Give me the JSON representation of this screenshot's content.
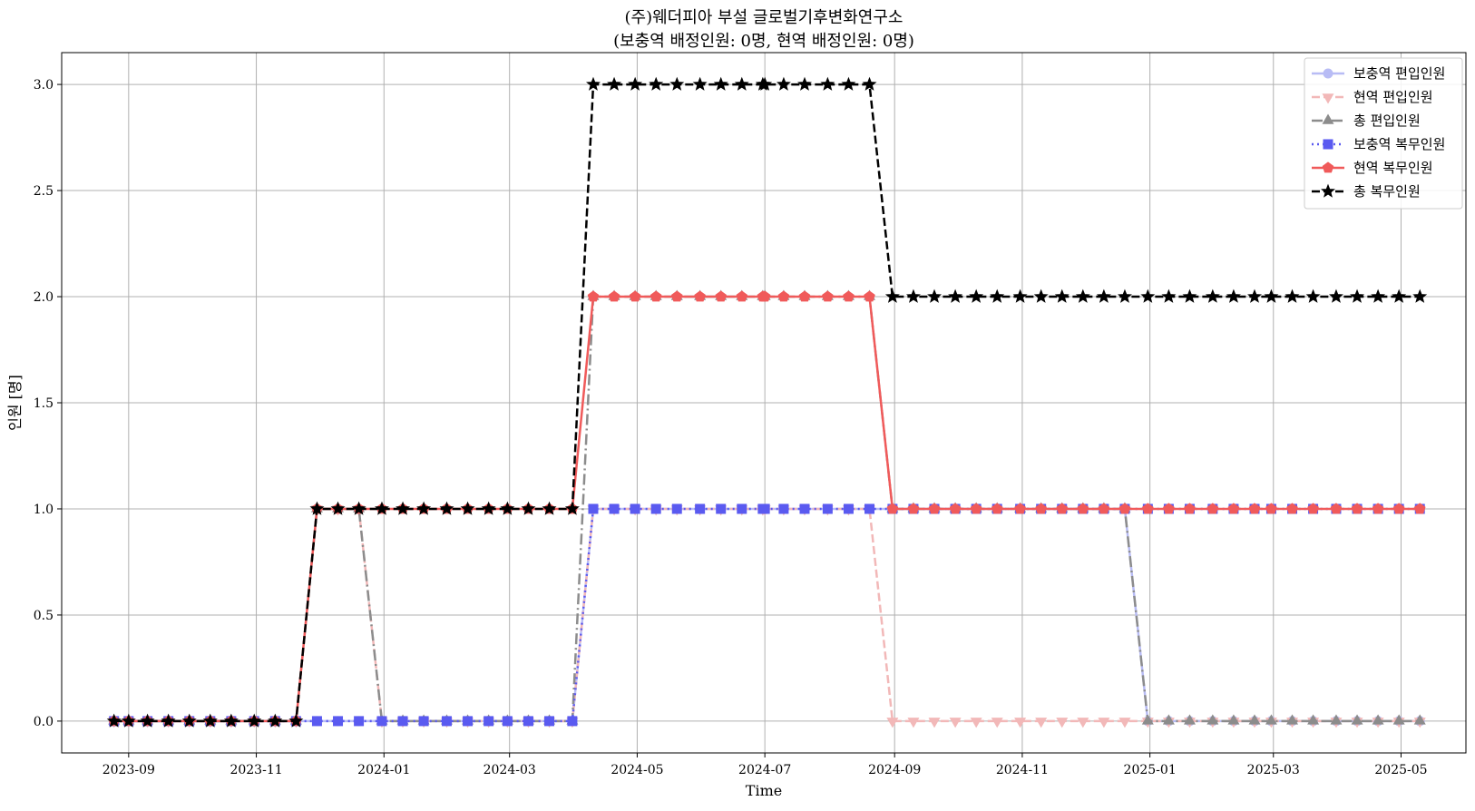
{
  "chart_data": {
    "type": "line",
    "title_line1": "(주)웨더피아 부설 글로벌기후변화연구소",
    "title_line2": "(보충역 배정인원: 0명, 현역 배정인원: 0명)",
    "xlabel": "Time",
    "ylabel": "인원 [명]",
    "ylim": [
      -0.15,
      3.15
    ],
    "xlim": [
      "2023-07-31",
      "2025-06-01"
    ],
    "grid": true,
    "legend_position": "top-right",
    "y_ticks": [
      0.0,
      0.5,
      1.0,
      1.5,
      2.0,
      2.5,
      3.0
    ],
    "y_tick_labels": [
      "0.0",
      "0.5",
      "1.0",
      "1.5",
      "2.0",
      "2.5",
      "3.0"
    ],
    "x_ticks": [
      "2023-09-01",
      "2023-11-01",
      "2024-01-01",
      "2024-03-01",
      "2024-05-01",
      "2024-07-01",
      "2024-09-01",
      "2024-11-01",
      "2025-01-01",
      "2025-03-01",
      "2025-05-01"
    ],
    "x_tick_labels": [
      "2023-09",
      "2023-11",
      "2024-01",
      "2024-03",
      "2024-05",
      "2024-07",
      "2024-09",
      "2024-11",
      "2025-01",
      "2025-03",
      "2025-05"
    ],
    "x": [
      "2023-08-25",
      "2023-09-01",
      "2023-09-10",
      "2023-09-20",
      "2023-09-30",
      "2023-10-10",
      "2023-10-20",
      "2023-10-31",
      "2023-11-10",
      "2023-11-20",
      "2023-11-30",
      "2023-12-10",
      "2023-12-20",
      "2023-12-31",
      "2024-01-10",
      "2024-01-20",
      "2024-01-31",
      "2024-02-10",
      "2024-02-20",
      "2024-02-29",
      "2024-03-10",
      "2024-03-20",
      "2024-03-31",
      "2024-04-10",
      "2024-04-20",
      "2024-04-30",
      "2024-05-10",
      "2024-05-20",
      "2024-05-31",
      "2024-06-10",
      "2024-06-20",
      "2024-06-30",
      "2024-07-01",
      "2024-07-10",
      "2024-07-20",
      "2024-07-31",
      "2024-08-10",
      "2024-08-20",
      "2024-08-31",
      "2024-09-10",
      "2024-09-20",
      "2024-09-30",
      "2024-10-10",
      "2024-10-20",
      "2024-10-31",
      "2024-11-10",
      "2024-11-20",
      "2024-11-30",
      "2024-12-10",
      "2024-12-20",
      "2024-12-31",
      "2025-01-10",
      "2025-01-20",
      "2025-01-31",
      "2025-02-10",
      "2025-02-20",
      "2025-02-28",
      "2025-03-10",
      "2025-03-20",
      "2025-03-31",
      "2025-04-10",
      "2025-04-20",
      "2025-04-30",
      "2025-05-10"
    ],
    "series": [
      {
        "name": "보충역 편입인원",
        "color": "#b8bcf5",
        "dash": "solid",
        "marker": "circle",
        "width": 2.5,
        "values": [
          0,
          0,
          0,
          0,
          0,
          0,
          0,
          0,
          0,
          0,
          0,
          0,
          0,
          0,
          0,
          0,
          0,
          0,
          0,
          0,
          0,
          0,
          0,
          1,
          1,
          1,
          1,
          1,
          1,
          1,
          1,
          1,
          1,
          1,
          1,
          1,
          1,
          1,
          1,
          1,
          1,
          1,
          1,
          1,
          1,
          1,
          1,
          1,
          1,
          1,
          0,
          0,
          0,
          0,
          0,
          0,
          0,
          0,
          0,
          0,
          0,
          0,
          0,
          0
        ]
      },
      {
        "name": "현역 편입인원",
        "color": "#f2b8b8",
        "dash": "dashed",
        "marker": "triangle-down",
        "width": 2.5,
        "values": [
          0,
          0,
          0,
          0,
          0,
          0,
          0,
          0,
          0,
          0,
          1,
          1,
          1,
          0,
          0,
          0,
          0,
          0,
          0,
          0,
          0,
          0,
          0,
          1,
          1,
          1,
          1,
          1,
          1,
          1,
          1,
          1,
          1,
          1,
          1,
          1,
          1,
          1,
          0,
          0,
          0,
          0,
          0,
          0,
          0,
          0,
          0,
          0,
          0,
          0,
          0,
          0,
          0,
          0,
          0,
          0,
          0,
          0,
          0,
          0,
          0,
          0,
          0,
          0
        ]
      },
      {
        "name": "총 편입인원",
        "color": "#8c8c8c",
        "dash": "dashdot",
        "marker": "triangle-up",
        "width": 2.5,
        "values": [
          0,
          0,
          0,
          0,
          0,
          0,
          0,
          0,
          0,
          0,
          1,
          1,
          1,
          0,
          0,
          0,
          0,
          0,
          0,
          0,
          0,
          0,
          0,
          2,
          2,
          2,
          2,
          2,
          2,
          2,
          2,
          2,
          2,
          2,
          2,
          2,
          2,
          2,
          1,
          1,
          1,
          1,
          1,
          1,
          1,
          1,
          1,
          1,
          1,
          1,
          0,
          0,
          0,
          0,
          0,
          0,
          0,
          0,
          0,
          0,
          0,
          0,
          0,
          0
        ]
      },
      {
        "name": "보충역 복무인원",
        "color": "#5a5af0",
        "dash": "dotted",
        "marker": "square",
        "width": 2.5,
        "values": [
          0,
          0,
          0,
          0,
          0,
          0,
          0,
          0,
          0,
          0,
          0,
          0,
          0,
          0,
          0,
          0,
          0,
          0,
          0,
          0,
          0,
          0,
          0,
          1,
          1,
          1,
          1,
          1,
          1,
          1,
          1,
          1,
          1,
          1,
          1,
          1,
          1,
          1,
          1,
          1,
          1,
          1,
          1,
          1,
          1,
          1,
          1,
          1,
          1,
          1,
          1,
          1,
          1,
          1,
          1,
          1,
          1,
          1,
          1,
          1,
          1,
          1,
          1,
          1
        ]
      },
      {
        "name": "현역 복무인원",
        "color": "#f05a5a",
        "dash": "solid",
        "marker": "pentagon",
        "width": 2.5,
        "values": [
          0,
          0,
          0,
          0,
          0,
          0,
          0,
          0,
          0,
          0,
          1,
          1,
          1,
          1,
          1,
          1,
          1,
          1,
          1,
          1,
          1,
          1,
          1,
          2,
          2,
          2,
          2,
          2,
          2,
          2,
          2,
          2,
          2,
          2,
          2,
          2,
          2,
          2,
          1,
          1,
          1,
          1,
          1,
          1,
          1,
          1,
          1,
          1,
          1,
          1,
          1,
          1,
          1,
          1,
          1,
          1,
          1,
          1,
          1,
          1,
          1,
          1,
          1,
          1
        ]
      },
      {
        "name": "총 복무인원",
        "color": "#000000",
        "dash": "dashed",
        "marker": "star",
        "width": 2.5,
        "values": [
          0,
          0,
          0,
          0,
          0,
          0,
          0,
          0,
          0,
          0,
          1,
          1,
          1,
          1,
          1,
          1,
          1,
          1,
          1,
          1,
          1,
          1,
          1,
          3,
          3,
          3,
          3,
          3,
          3,
          3,
          3,
          3,
          3,
          3,
          3,
          3,
          3,
          3,
          2,
          2,
          2,
          2,
          2,
          2,
          2,
          2,
          2,
          2,
          2,
          2,
          2,
          2,
          2,
          2,
          2,
          2,
          2,
          2,
          2,
          2,
          2,
          2,
          2,
          2
        ]
      }
    ]
  }
}
